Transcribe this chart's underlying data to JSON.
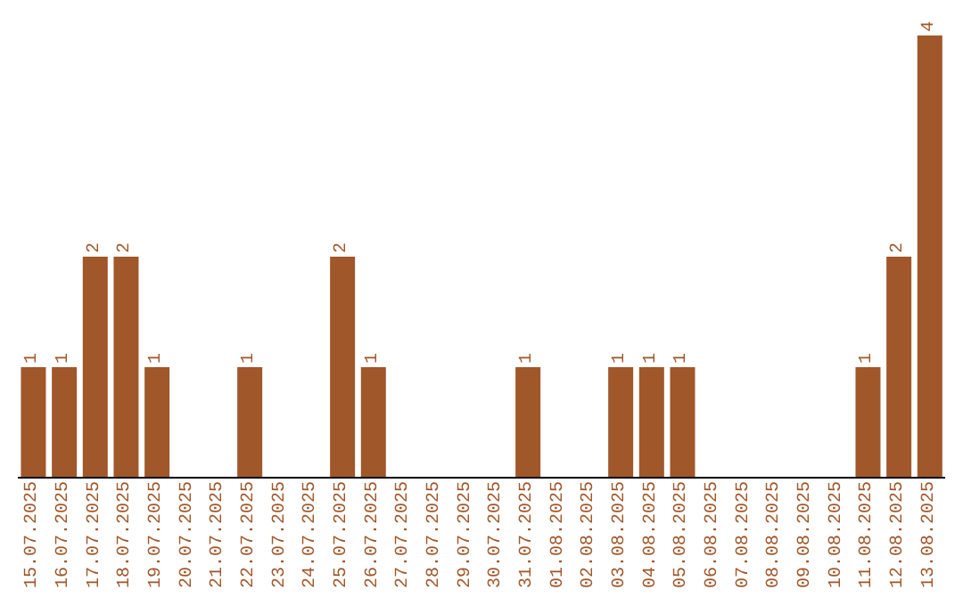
{
  "chart_data": {
    "type": "bar",
    "categories": [
      "15.07.2025",
      "16.07.2025",
      "17.07.2025",
      "18.07.2025",
      "19.07.2025",
      "20.07.2025",
      "21.07.2025",
      "22.07.2025",
      "23.07.2025",
      "24.07.2025",
      "25.07.2025",
      "26.07.2025",
      "27.07.2025",
      "28.07.2025",
      "29.07.2025",
      "30.07.2025",
      "31.07.2025",
      "01.08.2025",
      "02.08.2025",
      "03.08.2025",
      "04.08.2025",
      "05.08.2025",
      "06.08.2025",
      "07.08.2025",
      "08.08.2025",
      "09.08.2025",
      "10.08.2025",
      "11.08.2025",
      "12.08.2025",
      "13.08.2025"
    ],
    "values": [
      1,
      1,
      2,
      2,
      1,
      0,
      0,
      1,
      0,
      0,
      2,
      1,
      0,
      0,
      0,
      0,
      1,
      0,
      0,
      1,
      1,
      1,
      0,
      0,
      0,
      0,
      0,
      1,
      2,
      4
    ],
    "value_labels": [
      "1",
      "1",
      "2",
      "2",
      "1",
      null,
      null,
      "1",
      null,
      null,
      "2",
      "1",
      null,
      null,
      null,
      null,
      "1",
      null,
      null,
      "1",
      "1",
      "1",
      null,
      null,
      null,
      null,
      null,
      "1",
      "2",
      "4"
    ],
    "color": "#a0572a",
    "tick_labels": "x"
  }
}
